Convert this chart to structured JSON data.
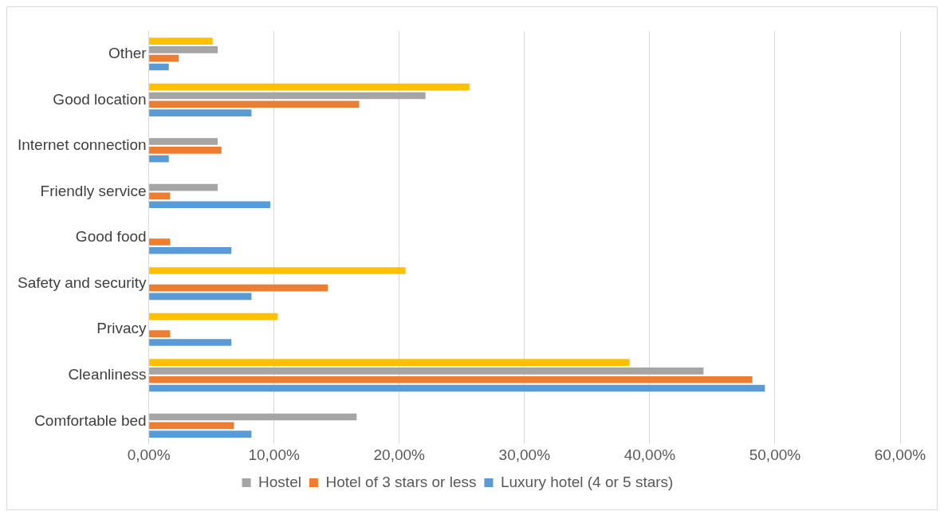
{
  "chart_data": {
    "type": "bar",
    "orientation": "horizontal",
    "categories": [
      "Other",
      "Good location",
      "Internet connection",
      "Friendly service",
      "Good food",
      "Safety and security",
      "Privacy",
      "Cleanliness",
      "Comfortable bed"
    ],
    "series": [
      {
        "color": "#ffc000",
        "values": [
          5.1,
          25.6,
          null,
          null,
          null,
          20.5,
          10.3,
          38.4,
          null
        ]
      },
      {
        "name": "Hostel",
        "color": "#a5a5a5",
        "values": [
          5.5,
          22.1,
          5.5,
          5.5,
          null,
          null,
          null,
          44.3,
          16.6
        ]
      },
      {
        "name": "Hotel of 3 stars or less",
        "color": "#ed7d31",
        "values": [
          2.4,
          16.8,
          5.8,
          1.7,
          1.7,
          14.3,
          1.7,
          48.2,
          6.8
        ]
      },
      {
        "name": "Luxury hotel (4 or 5 stars)",
        "color": "#5b9bd5",
        "values": [
          1.6,
          8.2,
          1.6,
          9.7,
          6.6,
          8.2,
          6.6,
          49.2,
          8.2
        ]
      }
    ],
    "xlim": [
      0,
      60
    ],
    "xticks": [
      {
        "value": 0,
        "label": "0,00%"
      },
      {
        "value": 10,
        "label": "10,00%"
      },
      {
        "value": 20,
        "label": "20,00%"
      },
      {
        "value": 30,
        "label": "30,00%"
      },
      {
        "value": 40,
        "label": "40,00%"
      },
      {
        "value": 50,
        "label": "50,00%"
      },
      {
        "value": 60,
        "label": "60,00%"
      }
    ],
    "grid": "x",
    "legend": "bottom"
  }
}
